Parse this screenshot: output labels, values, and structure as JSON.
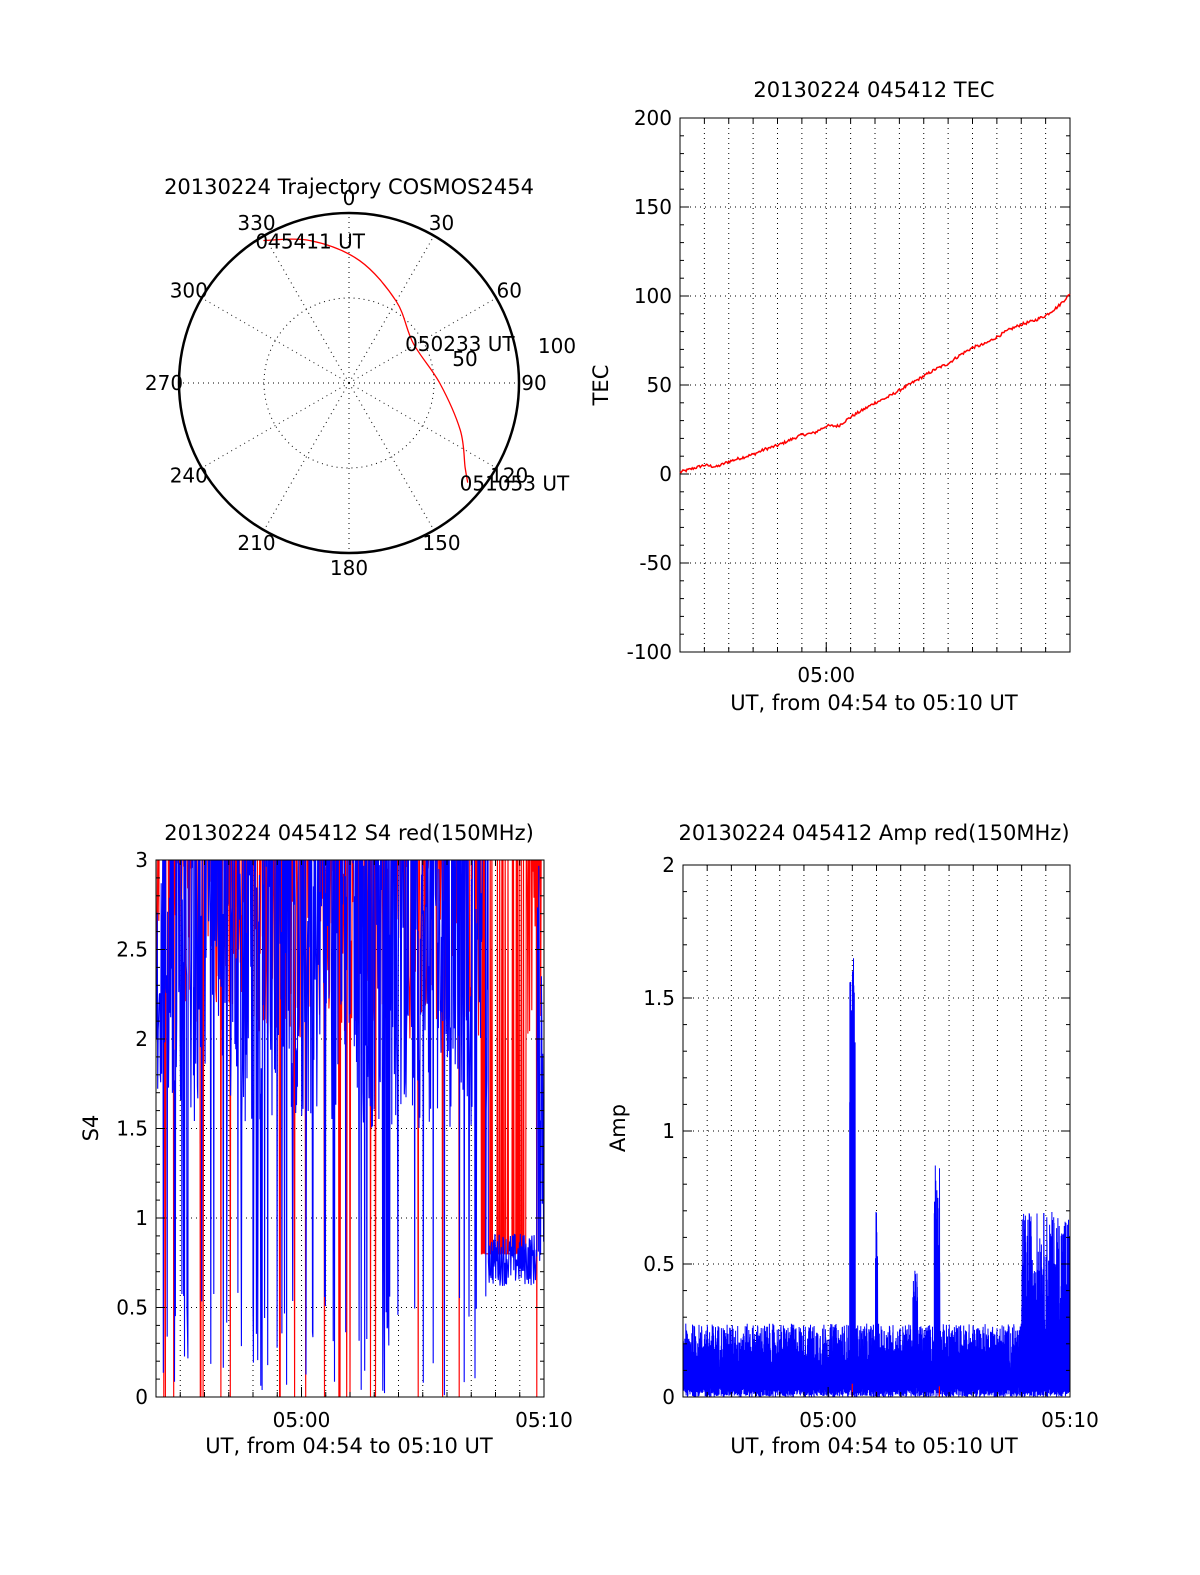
{
  "chart_data": [
    {
      "type": "scatter",
      "panel": "polar-trajectory",
      "title": "20130224 Trajectory COSMOS2454",
      "azimuth_labels": [
        "0",
        "30",
        "60",
        "90",
        "120",
        "150",
        "180",
        "210",
        "240",
        "270",
        "300",
        "330"
      ],
      "radial_labels": [
        "50",
        "100"
      ],
      "trajectory": {
        "points": [
          {
            "az": 329,
            "el": 2
          },
          {
            "az": 345,
            "el": 12
          },
          {
            "az": 5,
            "el": 25
          },
          {
            "az": 30,
            "el": 40
          },
          {
            "az": 58,
            "el": 50
          },
          {
            "az": 90,
            "el": 42
          },
          {
            "az": 113,
            "el": 26
          },
          {
            "az": 126,
            "el": 14
          },
          {
            "az": 130,
            "el": 8
          }
        ],
        "color": "#ff0000"
      },
      "time_labels": [
        {
          "text": "045411 UT",
          "az": 329,
          "el": 2
        },
        {
          "text": "050233 UT",
          "az": 58,
          "el": 50
        },
        {
          "text": "051053 UT",
          "az": 130,
          "el": 8
        }
      ]
    },
    {
      "type": "line",
      "panel": "tec",
      "title": "20130224 045412 TEC",
      "ylabel": "TEC",
      "xlabel": "UT, from 04:54 to 05:10 UT",
      "ylim": [
        -100,
        200
      ],
      "yticks": [
        "-100",
        "-50",
        "0",
        "50",
        "100",
        "150",
        "200"
      ],
      "xlim": [
        0,
        16
      ],
      "xticks": [
        {
          "x": 6,
          "label": "05:00"
        }
      ],
      "series": [
        {
          "color": "#ff0000",
          "x": [
            0,
            0.5,
            1,
            1.5,
            2,
            2.5,
            3,
            3.5,
            4,
            4.5,
            5,
            5.5,
            6,
            6.5,
            7,
            7.5,
            8,
            8.5,
            9,
            9.5,
            10,
            10.5,
            11,
            11.5,
            12,
            12.5,
            13,
            13.5,
            14,
            14.5,
            15,
            15.5,
            16
          ],
          "values": [
            1,
            3,
            5,
            4,
            7,
            9,
            11,
            14,
            16,
            19,
            22,
            23,
            27,
            27,
            32,
            36,
            40,
            43,
            47,
            51,
            55,
            59,
            62,
            67,
            71,
            73,
            77,
            81,
            84,
            86,
            89,
            94,
            101
          ]
        }
      ]
    },
    {
      "type": "line",
      "panel": "s4",
      "title": "20130224 045412 S4 red(150MHz)",
      "ylabel": "S4",
      "xlabel": "UT, from 04:54 to 05:10 UT",
      "ylim": [
        0,
        3
      ],
      "yticks": [
        "0",
        "0.5",
        "1",
        "1.5",
        "2",
        "2.5",
        "3"
      ],
      "xlim": [
        0,
        16
      ],
      "xticks": [
        {
          "x": 6,
          "label": "05:00"
        },
        {
          "x": 16,
          "label": "05:10"
        }
      ],
      "series": [
        {
          "color": "#0000ff"
        },
        {
          "color": "#ff0000"
        }
      ]
    },
    {
      "type": "line",
      "panel": "amp",
      "title": "20130224 045412 Amp red(150MHz)",
      "ylabel": "Amp",
      "xlabel": "UT, from 04:54 to 05:10 UT",
      "ylim": [
        0,
        2
      ],
      "yticks": [
        "0",
        "0.5",
        "1",
        "1.5",
        "2"
      ],
      "xlim": [
        0,
        16
      ],
      "xticks": [
        {
          "x": 6,
          "label": "05:00"
        },
        {
          "x": 16,
          "label": "05:10"
        }
      ],
      "series": [
        {
          "color": "#0000ff"
        },
        {
          "color": "#ff0000"
        }
      ]
    }
  ]
}
